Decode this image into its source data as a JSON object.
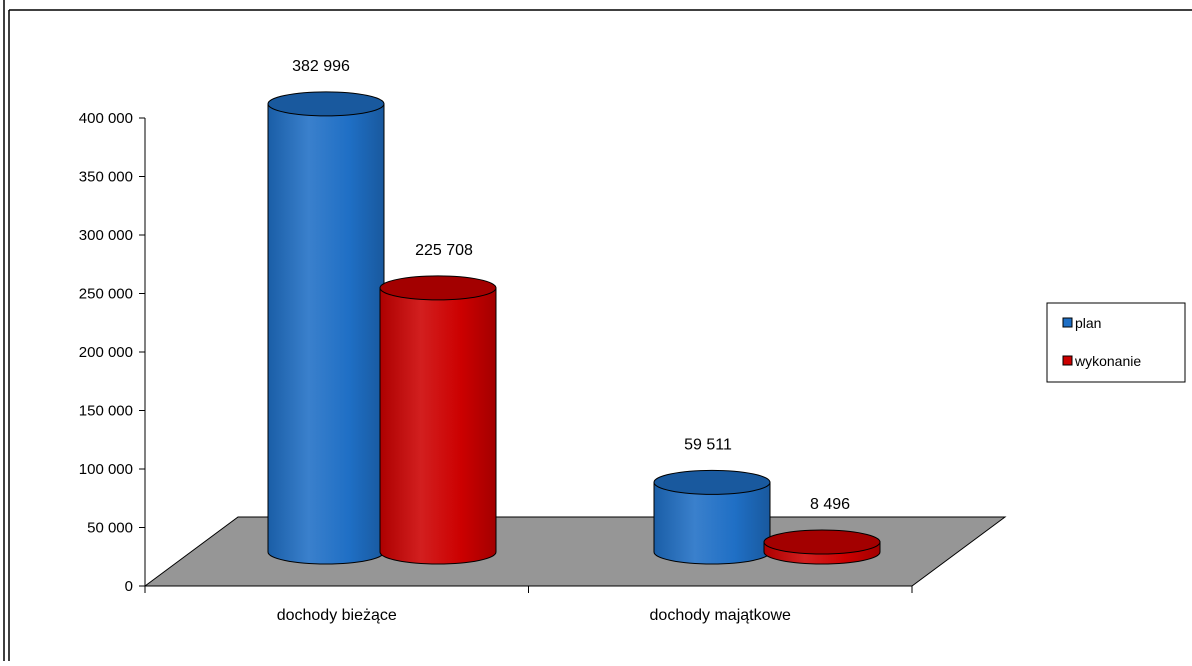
{
  "chart_data": {
    "type": "bar",
    "style": "3d-cylinder",
    "categories": [
      "dochody bieżące",
      "dochody majątkowe"
    ],
    "series": [
      {
        "name": "plan",
        "values": [
          382996,
          59511
        ],
        "labels": [
          "382 996",
          "59 511"
        ],
        "color": "#1F6FC5"
      },
      {
        "name": "wykonanie",
        "values": [
          225708,
          8496
        ],
        "labels": [
          "225 708",
          "8 496"
        ],
        "color": "#CC0000"
      }
    ],
    "yticks": [
      "0",
      "50 000",
      "100 000",
      "150 000",
      "200 000",
      "250 000",
      "300 000",
      "350 000",
      "400 000"
    ],
    "ylim": [
      0,
      400000
    ],
    "floor_color": "#969696",
    "legend": {
      "placement": "right",
      "entries": [
        "plan",
        "wykonanie"
      ]
    },
    "grid": false
  }
}
